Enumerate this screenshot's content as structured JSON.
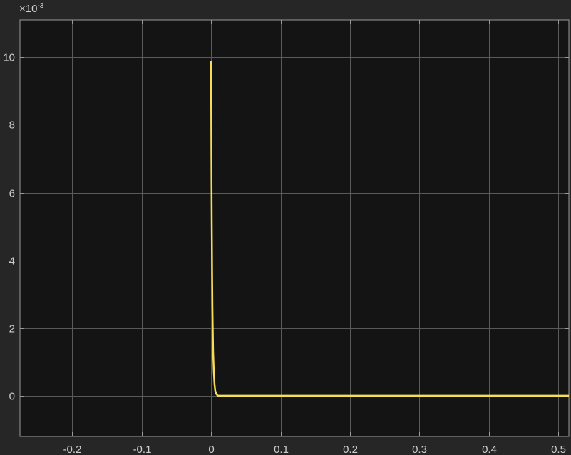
{
  "window": {
    "background": "#262626"
  },
  "chart_data": {
    "type": "line",
    "title": "",
    "xlabel": "",
    "ylabel": "",
    "xlim": [
      -0.275,
      0.515
    ],
    "ylim": [
      -0.0012,
      0.0111
    ],
    "y_exponent_label": {
      "base": "×10",
      "exponent": "-3"
    },
    "x_ticks": [
      {
        "value": -0.2,
        "label": "-0.2"
      },
      {
        "value": -0.1,
        "label": "-0.1"
      },
      {
        "value": 0,
        "label": "0"
      },
      {
        "value": 0.1,
        "label": "0.1"
      },
      {
        "value": 0.2,
        "label": "0.2"
      },
      {
        "value": 0.3,
        "label": "0.3"
      },
      {
        "value": 0.4,
        "label": "0.4"
      },
      {
        "value": 0.5,
        "label": "0.5"
      }
    ],
    "y_ticks": [
      {
        "value": 0,
        "label": "0"
      },
      {
        "value": 0.002,
        "label": "2"
      },
      {
        "value": 0.004,
        "label": "4"
      },
      {
        "value": 0.006,
        "label": "6"
      },
      {
        "value": 0.008,
        "label": "8"
      },
      {
        "value": 0.01,
        "label": "10"
      }
    ],
    "grid": true,
    "colors": {
      "axes_bg": "#141414",
      "grid": "#5a5a5a",
      "axes_line": "#9a9a9a",
      "line": "#f5dc5a"
    },
    "series": [
      {
        "x": [
          0,
          0.0005,
          0.001,
          0.0015,
          0.002,
          0.003,
          0.004,
          0.005,
          0.006,
          0.008,
          0.01,
          0.015,
          0.05,
          0.1,
          0.2,
          0.3,
          0.4,
          0.5,
          0.515
        ],
        "values": [
          0.0099,
          0.0072,
          0.0052,
          0.0037,
          0.0026,
          0.0013,
          0.0007,
          0.00035,
          0.00015,
          4e-05,
          0.0,
          0.0,
          0.0,
          0.0,
          0.0,
          0.0,
          0.0,
          0.0,
          0.0
        ]
      }
    ]
  }
}
